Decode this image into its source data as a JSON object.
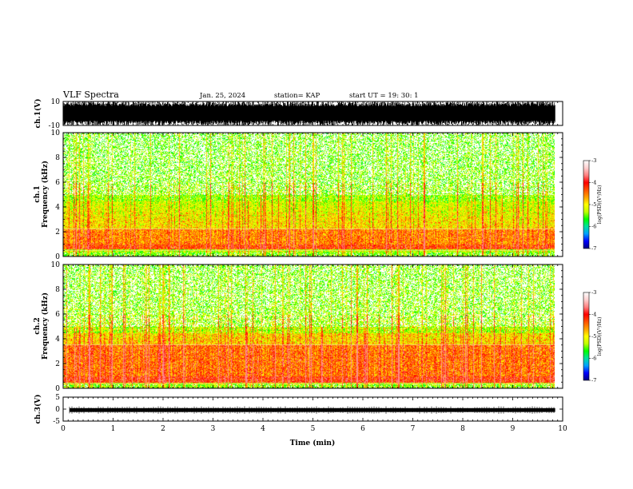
{
  "header": {
    "title": "VLF Spectra",
    "date": "Jan. 25, 2024",
    "station": "station= KAP",
    "start": "start  UT  =   19: 30: 1"
  },
  "colors": {
    "spectrogram_scale": [
      "#000080",
      "#0000ff",
      "#00a0ff",
      "#00e0a0",
      "#00ff00",
      "#c0ff00",
      "#ffff00",
      "#ffa000",
      "#ff5000",
      "#ff0000",
      "#ff8080",
      "#ffd0d0",
      "#ffffff"
    ],
    "waveform": "#000000"
  },
  "chart_data": [
    {
      "type": "line",
      "name": "ch1-waveform",
      "ylabel": "ch.1(V)",
      "ylim": [
        -10,
        10
      ],
      "yticks": [
        "10",
        "-10"
      ],
      "xlim": [
        0,
        10
      ],
      "description_of_signal": "dense noisy waveform spanning nearly full range",
      "x_extent": [
        0,
        9.85
      ]
    },
    {
      "type": "heatmap",
      "name": "ch1-spectrogram",
      "ylabel": "ch.1\nFrequency  (kHz)",
      "ylabel_line1": "ch.1",
      "ylabel_line2": "Frequency  (kHz)",
      "ylim": [
        0,
        10
      ],
      "yticks": [
        "0",
        "2",
        "4",
        "6",
        "8",
        "10"
      ],
      "xlim": [
        0,
        10
      ],
      "x_extent": [
        0,
        9.85
      ],
      "colorbar": {
        "ticks": [
          "-3",
          "-4",
          "-5",
          "-6",
          "-7"
        ],
        "range": [
          -7,
          -3
        ],
        "label": "log(PSD)(V²/Hz)"
      },
      "band_strong_khz": [
        0.6,
        2.2
      ],
      "intensity": 1.0
    },
    {
      "type": "heatmap",
      "name": "ch2-spectrogram",
      "ylabel": "ch.2\nFrequency  (kHz)",
      "ylabel_line1": "ch.2",
      "ylabel_line2": "Frequency  (kHz)",
      "ylim": [
        0,
        10
      ],
      "yticks": [
        "0",
        "2",
        "4",
        "6",
        "8",
        "10"
      ],
      "xlim": [
        0,
        10
      ],
      "x_extent": [
        0,
        9.85
      ],
      "colorbar": {
        "ticks": [
          "-3",
          "-4",
          "-5",
          "-6",
          "-7"
        ],
        "range": [
          -7,
          -3
        ],
        "label": "log(PSD)(V²/Hz)"
      },
      "band_strong_khz": [
        0.5,
        3.5
      ],
      "intensity": 1.25
    },
    {
      "type": "line",
      "name": "ch3-waveform",
      "ylabel": "ch.3(V)",
      "ylim": [
        -5,
        5
      ],
      "yticks": [
        "5",
        "0",
        "-5"
      ],
      "xlim": [
        0,
        10
      ],
      "x_extent": [
        0,
        9.85
      ],
      "band": [
        -1.2,
        0.4
      ],
      "xlabel": "Time  (min)",
      "xticks": [
        "0",
        "1",
        "2",
        "3",
        "4",
        "5",
        "6",
        "7",
        "8",
        "9",
        "10"
      ]
    }
  ]
}
